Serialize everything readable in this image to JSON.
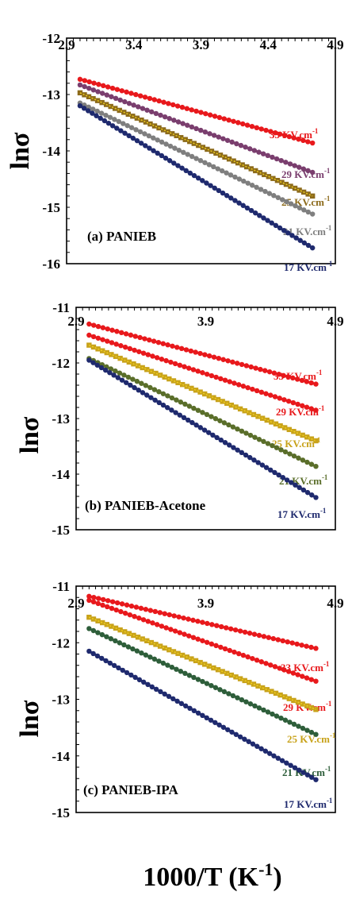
{
  "figure": {
    "y_axis_label": "lnσ",
    "x_axis_label": "1000/T  (K",
    "x_axis_label_sup": "-1",
    "x_axis_label_end": ")"
  },
  "chart_data": [
    {
      "type": "line",
      "title": "(a)  PANIEB",
      "xlabel": "1000/T  (K-1)",
      "ylabel": "lnσ",
      "xlim": [
        2.9,
        4.9
      ],
      "ylim": [
        -16,
        -12
      ],
      "x_ticks": [
        "2.9",
        "3.4",
        "3.9",
        "4.4",
        "4.9"
      ],
      "y_ticks": [
        "-12",
        "-13",
        "-14",
        "-15",
        "-16"
      ],
      "series": [
        {
          "name": "33 KV.cm-1",
          "label_main": "33 KV.cm",
          "label_sup": "-1",
          "color": "#e8191c",
          "x": [
            3.0,
            4.73
          ],
          "y": [
            -12.73,
            -13.86
          ]
        },
        {
          "name": "29 KV.cm-1",
          "label_main": "29 KV.cm",
          "label_sup": "-1",
          "color": "#7a3e6e",
          "x": [
            3.0,
            4.73
          ],
          "y": [
            -12.83,
            -14.38
          ]
        },
        {
          "name": "25 KV.cm-1",
          "label_main": "25 KV.cm",
          "label_sup": "-1",
          "color": "#8c6a1a",
          "x": [
            3.0,
            4.73
          ],
          "y": [
            -12.97,
            -14.8
          ]
        },
        {
          "name": "21 KV.cm-1",
          "label_main": "21 KV.cm",
          "label_sup": "-1",
          "color": "#7f7f7f",
          "x": [
            3.0,
            4.73
          ],
          "y": [
            -13.15,
            -15.12
          ]
        },
        {
          "name": "17 KV.cm-1",
          "label_main": "17 KV.cm",
          "label_sup": "-1",
          "color": "#1f2a6e",
          "x": [
            3.0,
            4.73
          ],
          "y": [
            -13.2,
            -15.72
          ]
        }
      ]
    },
    {
      "type": "line",
      "title": "(b) PANIEB-Acetone",
      "xlabel": "1000/T  (K-1)",
      "ylabel": "lnσ",
      "xlim": [
        2.9,
        4.9
      ],
      "ylim": [
        -15,
        -11
      ],
      "x_ticks": [
        "2.9",
        "3.9",
        "4.9"
      ],
      "y_ticks": [
        "-11",
        "-12",
        "-13",
        "-14",
        "-15"
      ],
      "series": [
        {
          "name": "33 KV.cm-1",
          "label_main": "33 KV.cm",
          "label_sup": "-1",
          "color": "#e8191c",
          "x": [
            3.0,
            4.75
          ],
          "y": [
            -11.3,
            -12.38
          ]
        },
        {
          "name": "29 KV.cm-1",
          "label_main": "29 KV.cm",
          "label_sup": "-1",
          "color": "#e8191c",
          "x": [
            3.0,
            4.75
          ],
          "y": [
            -11.5,
            -12.85
          ]
        },
        {
          "name": "25 KV.cm-1",
          "label_main": "25 KV.cm",
          "label_sup": "-1",
          "color": "#c8a21a",
          "x": [
            3.0,
            4.75
          ],
          "y": [
            -11.68,
            -13.4
          ]
        },
        {
          "name": "21 KV.cm-1",
          "label_main": "21 KV.cm",
          "label_sup": "-1",
          "color": "#5a6e2a",
          "x": [
            3.0,
            4.75
          ],
          "y": [
            -11.92,
            -13.86
          ]
        },
        {
          "name": "17 KV.cm-1",
          "label_main": "17 KV.cm",
          "label_sup": "-1",
          "color": "#1f2a6e",
          "x": [
            3.0,
            4.75
          ],
          "y": [
            -11.95,
            -14.42
          ]
        }
      ]
    },
    {
      "type": "line",
      "title": "(c) PANIEB-IPA",
      "xlabel": "1000/T  (K-1)",
      "ylabel": "lnσ",
      "xlim": [
        2.9,
        4.9
      ],
      "ylim": [
        -15,
        -11
      ],
      "x_ticks": [
        "2.9",
        "3.9",
        "4.9"
      ],
      "y_ticks": [
        "-11",
        "-12",
        "-13",
        "-14",
        "-15"
      ],
      "series": [
        {
          "name": "33 KV.cm-1",
          "label_main": "33 KV.cm",
          "label_sup": "-1",
          "color": "#e8191c",
          "x": [
            3.0,
            4.75
          ],
          "y": [
            -11.18,
            -12.1
          ]
        },
        {
          "name": "29 KV.cm-1",
          "label_main": "29 KV.cm",
          "label_sup": "-1",
          "color": "#e8191c",
          "x": [
            3.0,
            4.75
          ],
          "y": [
            -11.25,
            -12.68
          ]
        },
        {
          "name": "25 KV.cm-1",
          "label_main": "25 KV.cm",
          "label_sup": "-1",
          "color": "#c8a21a",
          "x": [
            3.0,
            4.75
          ],
          "y": [
            -11.55,
            -13.18
          ]
        },
        {
          "name": "21 KV.cm-1",
          "label_main": "21 KV.cm",
          "label_sup": "-1",
          "color": "#2e5e3a",
          "x": [
            3.0,
            4.75
          ],
          "y": [
            -11.75,
            -13.62
          ]
        },
        {
          "name": "17 KV.cm-1",
          "label_main": "17 KV.cm",
          "label_sup": "-1",
          "color": "#1f2a6e",
          "x": [
            3.0,
            4.75
          ],
          "y": [
            -12.15,
            -14.42
          ]
        }
      ]
    }
  ]
}
